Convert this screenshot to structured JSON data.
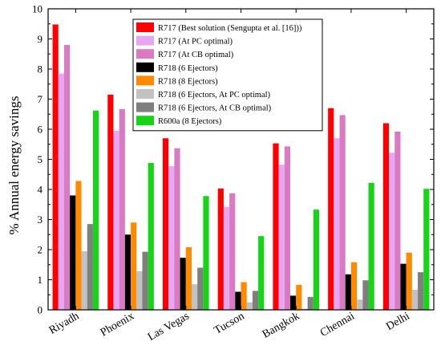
{
  "chart_data": {
    "type": "bar",
    "ylabel": "% Annual energy savings",
    "xlabel": "",
    "ylim": [
      0,
      10
    ],
    "y_ticks": [
      "0",
      "1",
      "2",
      "3",
      "4",
      "5",
      "6",
      "7",
      "8",
      "9",
      "10"
    ],
    "grid": false,
    "legend_position": "top-right",
    "categories": [
      "Riyadh",
      "Phoenix",
      "Las Vegas",
      "Tucson",
      "Bangkok",
      "Chennai",
      "Delhi"
    ],
    "series": [
      {
        "name": "R717 (Best solution (Sengupta et al. [16]))",
        "color": "#ff0000",
        "values": [
          9.48,
          7.15,
          5.7,
          4.03,
          5.53,
          6.7,
          6.2
        ]
      },
      {
        "name": "R717 (At PC optimal)",
        "color": "#e8a6f2",
        "values": [
          7.85,
          5.95,
          4.77,
          3.42,
          4.82,
          5.7,
          5.22
        ]
      },
      {
        "name": "R717 (At CB optimal)",
        "color": "#d97bc2",
        "values": [
          8.8,
          6.67,
          5.37,
          3.87,
          5.43,
          6.47,
          5.92
        ]
      },
      {
        "name": "R718 (6 Ejectors)",
        "color": "#000000",
        "values": [
          3.8,
          2.5,
          1.73,
          0.6,
          0.47,
          1.18,
          1.53
        ]
      },
      {
        "name": "R718 (8 Ejectors)",
        "color": "#ff8a00",
        "values": [
          4.28,
          2.9,
          2.08,
          0.92,
          0.83,
          1.58,
          1.9
        ]
      },
      {
        "name": "R718 (6 Ejectors, At PC optimal)",
        "color": "#c2c2c2",
        "values": [
          1.95,
          1.28,
          0.85,
          0.25,
          0.04,
          0.34,
          0.67
        ]
      },
      {
        "name": "R718 (6 Ejectors, At CB optimal)",
        "color": "#7f7f7f",
        "values": [
          2.85,
          1.93,
          1.4,
          0.63,
          0.43,
          0.98,
          1.25
        ]
      },
      {
        "name": "R600a (8 Ejectors)",
        "color": "#18d418",
        "values": [
          6.62,
          4.88,
          3.78,
          2.45,
          3.33,
          4.22,
          4.02
        ]
      }
    ]
  }
}
